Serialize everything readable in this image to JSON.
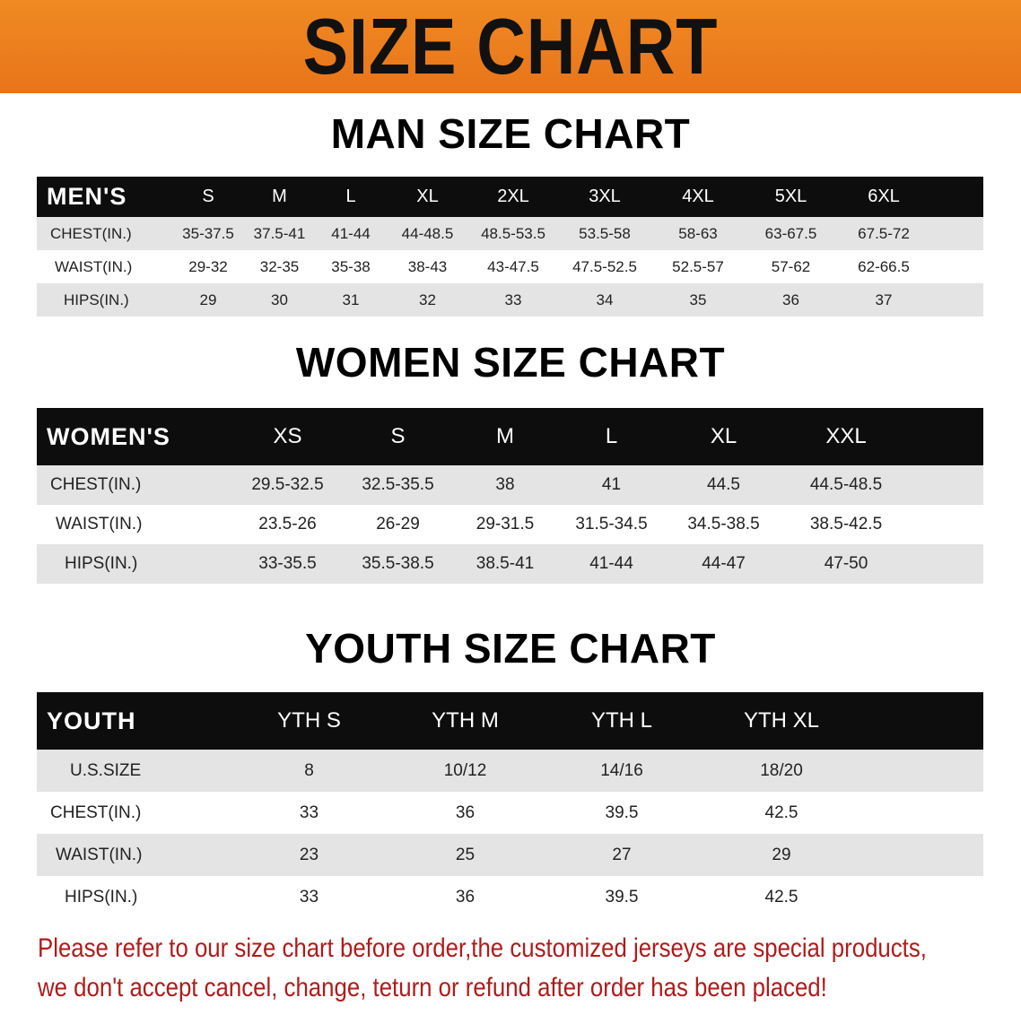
{
  "banner": {
    "title": "SIZE CHART",
    "color": "#e8781a"
  },
  "men": {
    "title": "MAN SIZE CHART",
    "header": [
      "MEN'S",
      "S",
      "M",
      "L",
      "XL",
      "2XL",
      "3XL",
      "4XL",
      "5XL",
      "6XL"
    ],
    "rows": [
      {
        "label": "CHEST(IN.)",
        "values": [
          "35-37.5",
          "37.5-41",
          "41-44",
          "44-48.5",
          "48.5-53.5",
          "53.5-58",
          "58-63",
          "63-67.5",
          "67.5-72"
        ]
      },
      {
        "label": "WAIST(IN.)",
        "values": [
          "29-32",
          "32-35",
          "35-38",
          "38-43",
          "43-47.5",
          "47.5-52.5",
          "52.5-57",
          "57-62",
          "62-66.5"
        ]
      },
      {
        "label": "HIPS(IN.)",
        "values": [
          "29",
          "30",
          "31",
          "32",
          "33",
          "34",
          "35",
          "36",
          "37"
        ]
      }
    ]
  },
  "women": {
    "title": "WOMEN SIZE CHART",
    "header": [
      "WOMEN'S",
      "XS",
      "S",
      "M",
      "L",
      "XL",
      "XXL"
    ],
    "rows": [
      {
        "label": "CHEST(IN.)",
        "values": [
          "29.5-32.5",
          "32.5-35.5",
          "38",
          "41",
          "44.5",
          "44.5-48.5"
        ]
      },
      {
        "label": "WAIST(IN.)",
        "values": [
          "23.5-26",
          "26-29",
          "29-31.5",
          "31.5-34.5",
          "34.5-38.5",
          "38.5-42.5"
        ]
      },
      {
        "label": "HIPS(IN.)",
        "values": [
          "33-35.5",
          "35.5-38.5",
          "38.5-41",
          "41-44",
          "44-47",
          "47-50"
        ]
      }
    ]
  },
  "youth": {
    "title": "YOUTH SIZE CHART",
    "header": [
      "YOUTH",
      "YTH S",
      "YTH M",
      "YTH L",
      "YTH XL"
    ],
    "rows": [
      {
        "label": "U.S.SIZE",
        "values": [
          "8",
          "10/12",
          "14/16",
          "18/20"
        ]
      },
      {
        "label": "CHEST(IN.)",
        "values": [
          "33",
          "36",
          "39.5",
          "42.5"
        ]
      },
      {
        "label": "WAIST(IN.)",
        "values": [
          "23",
          "25",
          "27",
          "29"
        ]
      },
      {
        "label": "HIPS(IN.)",
        "values": [
          "33",
          "36",
          "39.5",
          "42.5"
        ]
      }
    ]
  },
  "note": {
    "line1": "Please refer to our size chart before order,the customized jerseys are special products,",
    "line2": "we don't accept cancel, change, teturn or refund after order has been placed!",
    "color": "#b01b1b"
  }
}
